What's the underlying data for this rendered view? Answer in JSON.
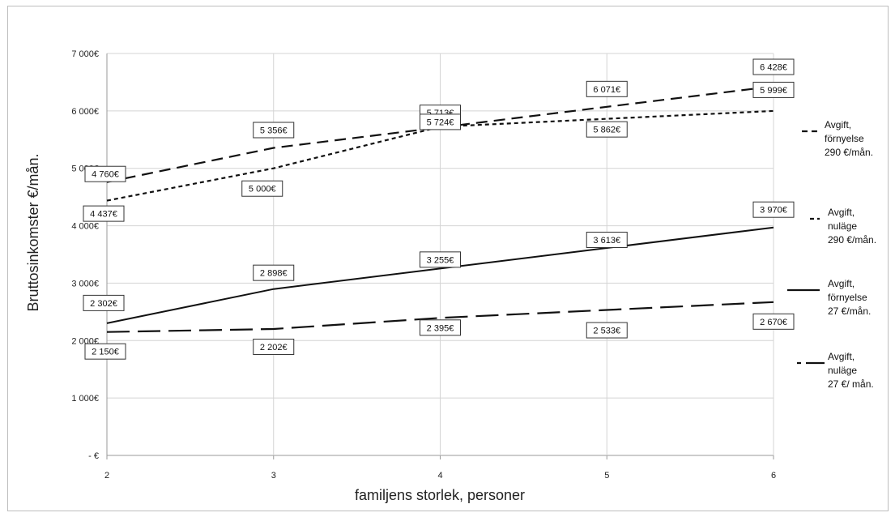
{
  "chart_data": {
    "type": "line",
    "xlabel": "familjens storlek, personer",
    "ylabel": "Bruttosinkomster €/mån.",
    "x": [
      2,
      3,
      4,
      5,
      6
    ],
    "xlim": [
      2,
      6
    ],
    "ylim": [
      0,
      7000
    ],
    "yticks": [
      0,
      1000,
      2000,
      3000,
      4000,
      5000,
      6000,
      7000
    ],
    "ytick_labels": [
      "- €",
      "1 000€",
      "2 000€",
      "3 000€",
      "4 000€",
      "5 000€",
      "6 000€",
      "7 000€"
    ],
    "xtick_labels": [
      "2",
      "3",
      "4",
      "5",
      "6"
    ],
    "grid": true,
    "series": [
      {
        "name": "Avgift, förnyelse 290 €/mån.",
        "legend_lines": [
          "Avgift,",
          "förnyelse",
          "290 €/mån."
        ],
        "style": "dashed",
        "values": [
          4760,
          5356,
          5713,
          6071,
          6428
        ],
        "labels": [
          "4 760€",
          "5 356€",
          "5 713€",
          "6 071€",
          "6 428€"
        ]
      },
      {
        "name": "Avgift, nuläge 290 €/mån.",
        "legend_lines": [
          "Avgift,",
          "nuläge",
          "290 €/mån."
        ],
        "style": "dotted",
        "values": [
          4437,
          5000,
          5724,
          5862,
          5999
        ],
        "labels": [
          "4 437€",
          "5 000€",
          "5 724€",
          "5 862€",
          "5 999€"
        ]
      },
      {
        "name": "Avgift, förnyelse 27 €/mån.",
        "legend_lines": [
          "Avgift,",
          "förnyelse",
          "27 €/mån."
        ],
        "style": "solid",
        "values": [
          2302,
          2898,
          3255,
          3613,
          3970
        ],
        "labels": [
          "2 302€",
          "2 898€",
          "3 255€",
          "3 613€",
          "3 970€"
        ]
      },
      {
        "name": "Avgift, nuläge 27 €/ mån.",
        "legend_lines": [
          "Avgift,",
          "nuläge",
          "27 €/ mån."
        ],
        "style": "longdash",
        "values": [
          2150,
          2202,
          2395,
          2533,
          2670
        ],
        "labels": [
          "2 150€",
          "2 202€",
          "2 395€",
          "2 533€",
          "2 670€"
        ]
      }
    ],
    "legend_position": "right"
  }
}
